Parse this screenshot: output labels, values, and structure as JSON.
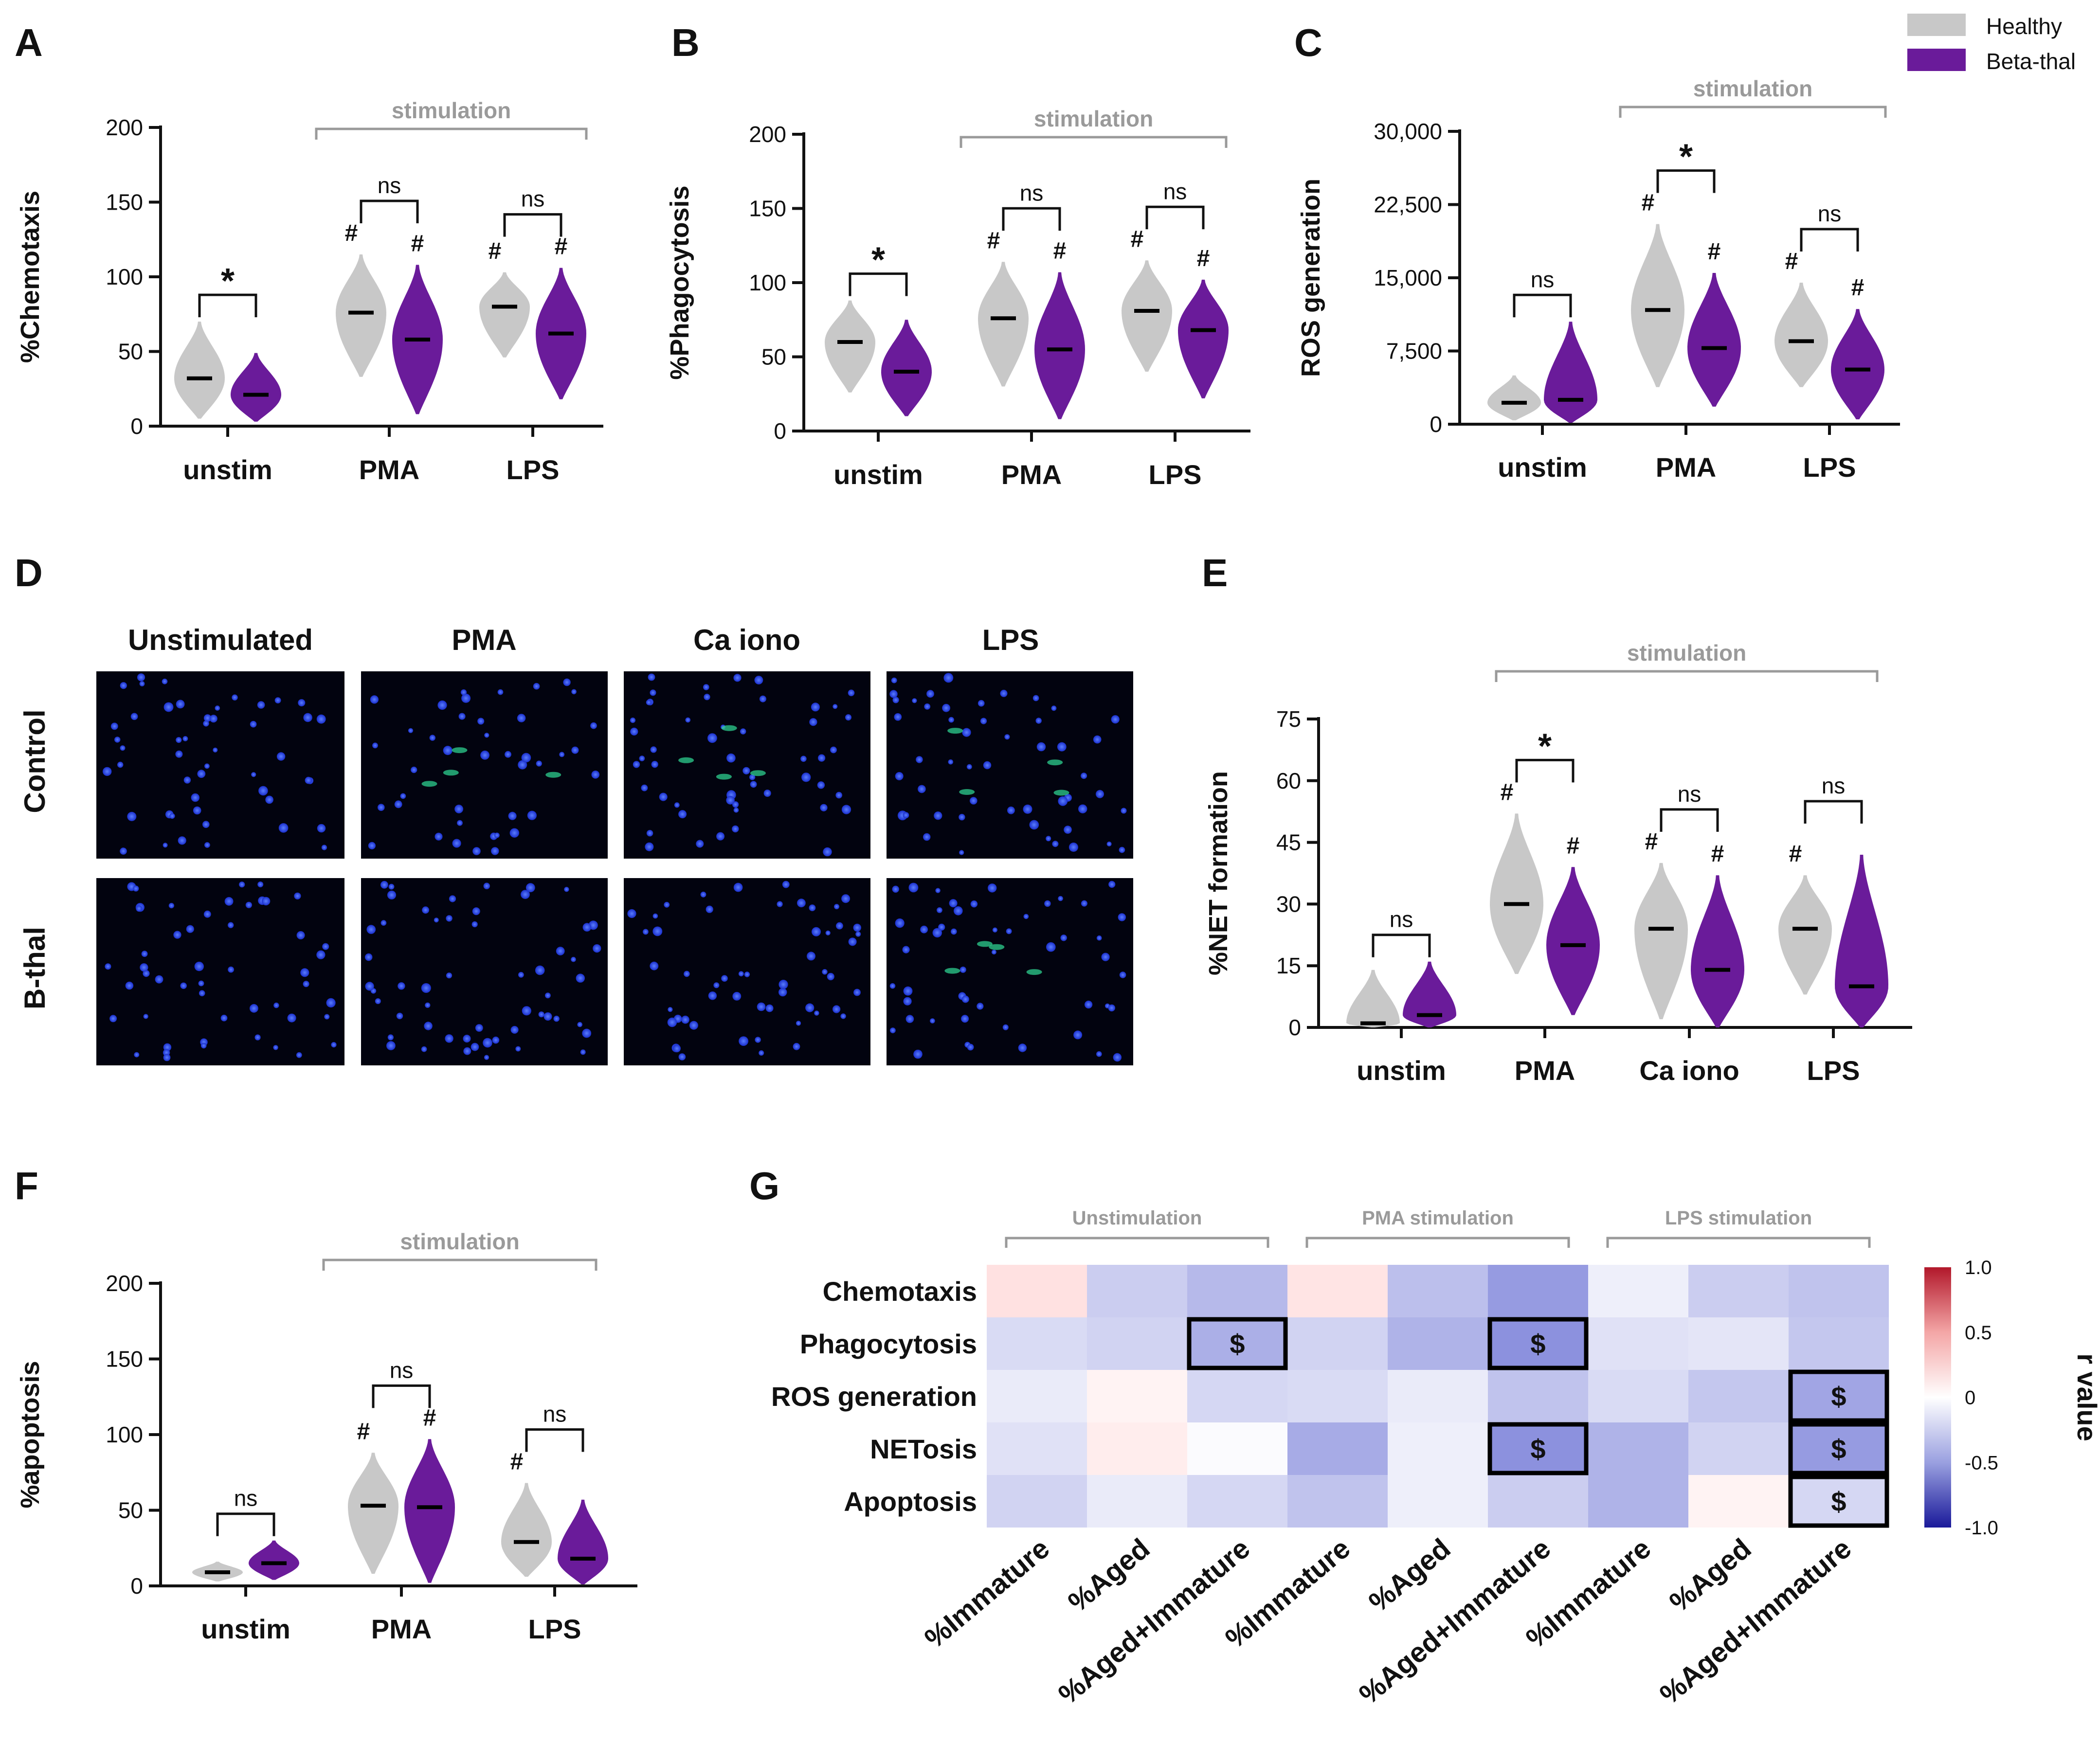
{
  "legend": {
    "items": [
      {
        "label": "Healthy",
        "color": "#c8c8c8"
      },
      {
        "label": "Beta-thal",
        "color": "#6a1b9a"
      }
    ]
  },
  "colors": {
    "healthy": "#c8c8c8",
    "beta_thal": "#6a1b9a",
    "stim_gray": "#9a9a9a"
  },
  "chart_data": [
    {
      "id": "A",
      "type": "violin",
      "panel_label": "A",
      "ylabel": "%Chemotaxis",
      "ylim": [
        0,
        200
      ],
      "yticks": [
        0,
        50,
        100,
        150,
        200
      ],
      "ytick_labels": [
        "0",
        "50",
        "100",
        "150",
        "200"
      ],
      "categories": [
        "unstim",
        "PMA",
        "LPS"
      ],
      "series": [
        {
          "name": "Healthy",
          "medians": [
            32,
            76,
            80
          ],
          "ranges": [
            [
              5,
              70
            ],
            [
              33,
              115
            ],
            [
              46,
              103
            ]
          ]
        },
        {
          "name": "Beta-thal",
          "medians": [
            21,
            58,
            62
          ],
          "ranges": [
            [
              3,
              49
            ],
            [
              8,
              108
            ],
            [
              18,
              106
            ]
          ]
        }
      ],
      "pair_annotations": [
        "*",
        "ns",
        "ns"
      ],
      "hash_marks": {
        "Healthy": [
          "",
          "#",
          "#"
        ],
        "Beta-thal": [
          "",
          "#",
          "#"
        ]
      },
      "stimulation_label": "stimulation"
    },
    {
      "id": "B",
      "type": "violin",
      "panel_label": "B",
      "ylabel": "%Phagocytosis",
      "ylim": [
        0,
        200
      ],
      "yticks": [
        0,
        50,
        100,
        150,
        200
      ],
      "ytick_labels": [
        "0",
        "50",
        "100",
        "150",
        "200"
      ],
      "categories": [
        "unstim",
        "PMA",
        "LPS"
      ],
      "series": [
        {
          "name": "Healthy",
          "medians": [
            60,
            76,
            81
          ],
          "ranges": [
            [
              26,
              88
            ],
            [
              30,
              114
            ],
            [
              40,
              115
            ]
          ]
        },
        {
          "name": "Beta-thal",
          "medians": [
            40,
            55,
            68
          ],
          "ranges": [
            [
              10,
              75
            ],
            [
              8,
              107
            ],
            [
              22,
              102
            ]
          ]
        }
      ],
      "pair_annotations": [
        "*",
        "ns",
        "ns"
      ],
      "hash_marks": {
        "Healthy": [
          "",
          "#",
          "#"
        ],
        "Beta-thal": [
          "",
          "#",
          "#"
        ]
      },
      "stimulation_label": "stimulation"
    },
    {
      "id": "C",
      "type": "violin",
      "panel_label": "C",
      "ylabel": "ROS generation",
      "ylim": [
        0,
        30000
      ],
      "yticks": [
        0,
        7500,
        15000,
        22500,
        30000
      ],
      "ytick_labels": [
        "0",
        "7,500",
        "15,000",
        "22,500",
        "30,000"
      ],
      "categories": [
        "unstim",
        "PMA",
        "LPS"
      ],
      "series": [
        {
          "name": "Healthy",
          "medians": [
            2200,
            11700,
            8500
          ],
          "ranges": [
            [
              400,
              5000
            ],
            [
              3800,
              20500
            ],
            [
              3800,
              14500
            ]
          ]
        },
        {
          "name": "Beta-thal",
          "medians": [
            2500,
            7800,
            5600
          ],
          "ranges": [
            [
              150,
              10500
            ],
            [
              1800,
              15500
            ],
            [
              500,
              11800
            ]
          ]
        }
      ],
      "pair_annotations": [
        "ns",
        "*",
        "ns"
      ],
      "hash_marks": {
        "Healthy": [
          "",
          "#",
          "#"
        ],
        "Beta-thal": [
          "",
          "#",
          "#"
        ]
      },
      "stimulation_label": "stimulation"
    },
    {
      "id": "E",
      "type": "violin",
      "panel_label": "E",
      "ylabel": "%NET formation",
      "ylim": [
        0,
        75
      ],
      "yticks": [
        0,
        15,
        30,
        45,
        60,
        75
      ],
      "ytick_labels": [
        "0",
        "15",
        "30",
        "45",
        "60",
        "75"
      ],
      "categories": [
        "unstim",
        "PMA",
        "Ca iono",
        "LPS"
      ],
      "series": [
        {
          "name": "Healthy",
          "medians": [
            1,
            30,
            24,
            24
          ],
          "ranges": [
            [
              0,
              14
            ],
            [
              13,
              52
            ],
            [
              2,
              40
            ],
            [
              8,
              37
            ]
          ]
        },
        {
          "name": "Beta-thal",
          "medians": [
            3,
            20,
            14,
            10
          ],
          "ranges": [
            [
              0,
              16
            ],
            [
              3,
              39
            ],
            [
              0,
              37
            ],
            [
              0,
              42
            ]
          ]
        }
      ],
      "pair_annotations": [
        "ns",
        "*",
        "ns",
        "ns"
      ],
      "hash_marks": {
        "Healthy": [
          "",
          "#",
          "#",
          "#"
        ],
        "Beta-thal": [
          "",
          "#",
          "#",
          ""
        ]
      },
      "stimulation_label": "stimulation"
    },
    {
      "id": "F",
      "type": "violin",
      "panel_label": "F",
      "ylabel": "%apoptosis",
      "ylim": [
        0,
        200
      ],
      "yticks": [
        0,
        50,
        100,
        150,
        200
      ],
      "ytick_labels": [
        "0",
        "50",
        "100",
        "150",
        "200"
      ],
      "categories": [
        "unstim",
        "PMA",
        "LPS"
      ],
      "series": [
        {
          "name": "Healthy",
          "medians": [
            9,
            53,
            29
          ],
          "ranges": [
            [
              3,
              16
            ],
            [
              8,
              88
            ],
            [
              6,
              68
            ]
          ]
        },
        {
          "name": "Beta-thal",
          "medians": [
            15,
            52,
            18
          ],
          "ranges": [
            [
              4,
              30
            ],
            [
              2,
              97
            ],
            [
              1,
              57
            ]
          ]
        }
      ],
      "pair_annotations": [
        "ns",
        "ns",
        "ns"
      ],
      "hash_marks": {
        "Healthy": [
          "",
          "#",
          "#"
        ],
        "Beta-thal": [
          "",
          "#",
          ""
        ]
      },
      "stimulation_label": "stimulation"
    },
    {
      "id": "G",
      "type": "heatmap",
      "panel_label": "G",
      "rows": [
        "Chemotaxis",
        "Phagocytosis",
        "ROS generation",
        "NETosis",
        "Apoptosis"
      ],
      "columns": [
        "%Immature",
        "%Aged",
        "%Aged+Immature",
        "%Immature",
        "%Aged",
        "%Aged+Immature",
        "%Immature",
        "%Aged",
        "%Aged+Immature"
      ],
      "column_groups": [
        {
          "label": "Unstimulation",
          "span": [
            0,
            2
          ]
        },
        {
          "label": "PMA stimulation",
          "span": [
            3,
            5
          ]
        },
        {
          "label": "LPS stimulation",
          "span": [
            6,
            8
          ]
        }
      ],
      "values": [
        [
          0.2,
          -0.25,
          -0.35,
          0.18,
          -0.32,
          -0.5,
          -0.08,
          -0.25,
          -0.3
        ],
        [
          -0.18,
          -0.22,
          -0.4,
          -0.22,
          -0.38,
          -0.55,
          -0.15,
          -0.13,
          -0.28
        ],
        [
          -0.1,
          0.08,
          -0.2,
          -0.18,
          -0.1,
          -0.3,
          -0.18,
          -0.28,
          -0.45
        ],
        [
          -0.15,
          0.12,
          -0.02,
          -0.42,
          -0.08,
          -0.55,
          -0.38,
          -0.22,
          -0.5
        ],
        [
          -0.22,
          -0.1,
          -0.2,
          -0.3,
          -0.08,
          -0.25,
          -0.38,
          0.08,
          -0.2
        ]
      ],
      "significant": [
        [
          1,
          2
        ],
        [
          1,
          5
        ],
        [
          2,
          8
        ],
        [
          3,
          5
        ],
        [
          3,
          8
        ],
        [
          4,
          8
        ]
      ],
      "significance_marker": "$",
      "colorbar": {
        "label": "r value",
        "ticks": [
          1.0,
          0.5,
          0,
          -0.5,
          -1.0
        ],
        "tick_labels": [
          "1.0",
          "0.5",
          "0",
          "-0.5",
          "-1.0"
        ],
        "range": [
          -1,
          1
        ]
      }
    }
  ],
  "micrographs": {
    "panel_label": "D",
    "columns": [
      "Unstimulated",
      "PMA",
      "Ca iono",
      "LPS"
    ],
    "rows": [
      "Control",
      "B-thal"
    ]
  }
}
